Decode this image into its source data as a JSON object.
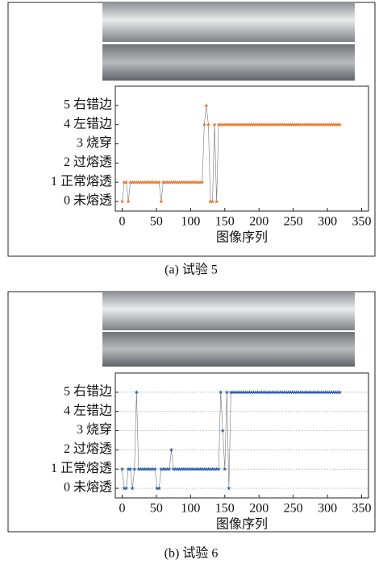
{
  "chart_data": [
    {
      "type": "line",
      "xlabel": "图像序列",
      "caption": "(a) 试验 5",
      "grid": false,
      "xlim": [
        -10,
        360
      ],
      "ylim": [
        -0.5,
        6
      ],
      "xticks": [
        0,
        50,
        100,
        150,
        200,
        250,
        300,
        350
      ],
      "yticks": [
        {
          "value": 0,
          "label": "0 未熔透"
        },
        {
          "value": 1,
          "label": "1 正常熔透"
        },
        {
          "value": 2,
          "label": "2 过熔透"
        },
        {
          "value": 3,
          "label": "3 烧穿"
        },
        {
          "value": 4,
          "label": "4 左错边"
        },
        {
          "value": 5,
          "label": "5 右错边"
        }
      ],
      "x": [
        0,
        3,
        6,
        9,
        12,
        15,
        18,
        21,
        24,
        27,
        30,
        33,
        36,
        39,
        42,
        45,
        48,
        51,
        54,
        57,
        60,
        63,
        66,
        69,
        72,
        75,
        78,
        81,
        84,
        87,
        90,
        93,
        96,
        99,
        102,
        105,
        108,
        111,
        114,
        117,
        120,
        123,
        126,
        129,
        132,
        135,
        138,
        141,
        144,
        147,
        150,
        153,
        156,
        159,
        162,
        165,
        168,
        171,
        174,
        177,
        180,
        183,
        186,
        189,
        192,
        195,
        198,
        201,
        204,
        207,
        210,
        213,
        216,
        219,
        222,
        225,
        228,
        231,
        234,
        237,
        240,
        243,
        246,
        249,
        252,
        255,
        258,
        261,
        264,
        267,
        270,
        273,
        276,
        279,
        282,
        285,
        288,
        291,
        294,
        297,
        300,
        303,
        306,
        309,
        312,
        315,
        318
      ],
      "series": [
        {
          "color": "#e8762d",
          "values": [
            0,
            1,
            1,
            0,
            1,
            1,
            1,
            1,
            1,
            1,
            1,
            1,
            1,
            1,
            1,
            1,
            1,
            1,
            1,
            0,
            1,
            1,
            1,
            1,
            1,
            1,
            1,
            1,
            1,
            1,
            1,
            1,
            1,
            1,
            1,
            1,
            1,
            1,
            1,
            1,
            4,
            5,
            4,
            0,
            0,
            4,
            0,
            4,
            4,
            4,
            4,
            4,
            4,
            4,
            4,
            4,
            4,
            4,
            4,
            4,
            4,
            4,
            4,
            4,
            4,
            4,
            4,
            4,
            4,
            4,
            4,
            4,
            4,
            4,
            4,
            4,
            4,
            4,
            4,
            4,
            4,
            4,
            4,
            4,
            4,
            4,
            4,
            4,
            4,
            4,
            4,
            4,
            4,
            4,
            4,
            4,
            4,
            4,
            4,
            4,
            4,
            4,
            4,
            4,
            4,
            4,
            4
          ]
        }
      ]
    },
    {
      "type": "line",
      "xlabel": "图像序列",
      "caption": "(b) 试验 6",
      "grid": true,
      "xlim": [
        -10,
        360
      ],
      "ylim": [
        -0.5,
        6
      ],
      "xticks": [
        0,
        50,
        100,
        150,
        200,
        250,
        300,
        350
      ],
      "yticks": [
        {
          "value": 0,
          "label": "0 未熔透"
        },
        {
          "value": 1,
          "label": "1 正常熔透"
        },
        {
          "value": 2,
          "label": "2 过熔透"
        },
        {
          "value": 3,
          "label": "3 烧穿"
        },
        {
          "value": 4,
          "label": "4 左错边"
        },
        {
          "value": 5,
          "label": "5 右错边"
        }
      ],
      "x": [
        0,
        3,
        6,
        9,
        12,
        15,
        18,
        21,
        24,
        27,
        30,
        33,
        36,
        39,
        42,
        45,
        48,
        51,
        54,
        57,
        60,
        63,
        66,
        69,
        72,
        75,
        78,
        81,
        84,
        87,
        90,
        93,
        96,
        99,
        102,
        105,
        108,
        111,
        114,
        117,
        120,
        123,
        126,
        129,
        132,
        135,
        138,
        141,
        144,
        147,
        150,
        153,
        156,
        159,
        162,
        165,
        168,
        171,
        174,
        177,
        180,
        183,
        186,
        189,
        192,
        195,
        198,
        201,
        204,
        207,
        210,
        213,
        216,
        219,
        222,
        225,
        228,
        231,
        234,
        237,
        240,
        243,
        246,
        249,
        252,
        255,
        258,
        261,
        264,
        267,
        270,
        273,
        276,
        279,
        282,
        285,
        288,
        291,
        294,
        297,
        300,
        303,
        306,
        309,
        312,
        315,
        318
      ],
      "series": [
        {
          "color": "#2a5caa",
          "values": [
            1,
            0,
            0,
            1,
            1,
            0,
            1,
            5,
            1,
            1,
            1,
            1,
            1,
            1,
            1,
            1,
            1,
            0,
            0,
            1,
            1,
            1,
            1,
            1,
            2,
            1,
            1,
            1,
            1,
            1,
            1,
            1,
            1,
            1,
            1,
            1,
            1,
            1,
            1,
            1,
            1,
            1,
            1,
            1,
            1,
            1,
            1,
            1,
            5,
            3,
            1,
            5,
            0,
            5,
            5,
            5,
            5,
            5,
            5,
            5,
            5,
            5,
            5,
            5,
            5,
            5,
            5,
            5,
            5,
            5,
            5,
            5,
            5,
            5,
            5,
            5,
            5,
            5,
            5,
            5,
            5,
            5,
            5,
            5,
            5,
            5,
            5,
            5,
            5,
            5,
            5,
            5,
            5,
            5,
            5,
            5,
            5,
            5,
            5,
            5,
            5,
            5,
            5,
            5,
            5,
            5,
            5
          ]
        }
      ]
    }
  ]
}
